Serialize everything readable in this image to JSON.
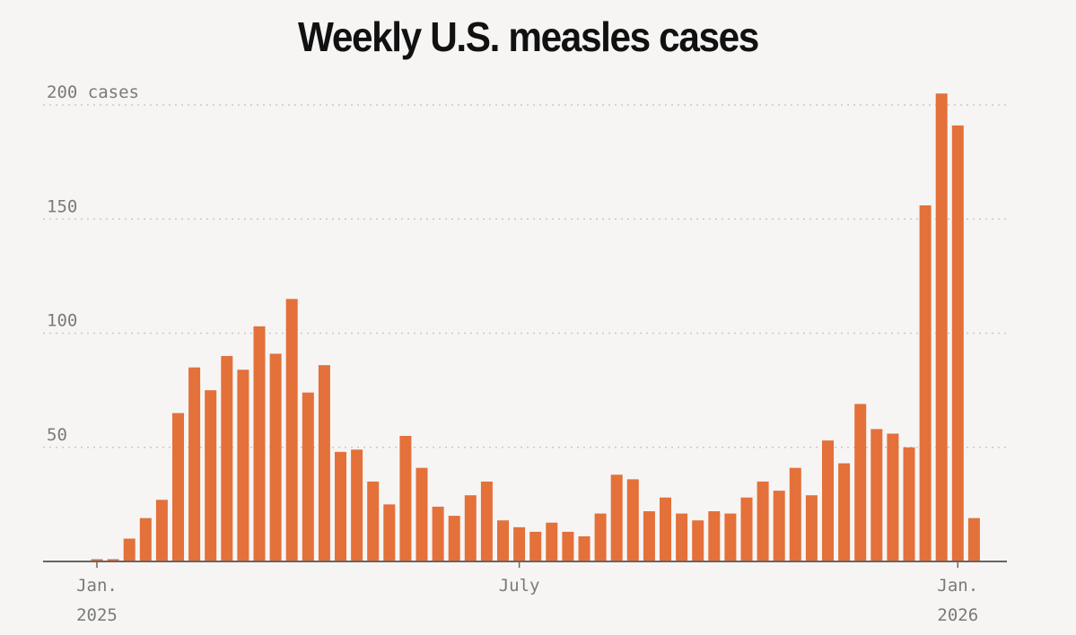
{
  "chart_data": {
    "type": "bar",
    "title": "Weekly U.S. measles cases",
    "xlabel": "",
    "ylabel": "",
    "ylim": [
      0,
      200
    ],
    "y_ticks": [
      {
        "value": 50,
        "label": "50"
      },
      {
        "value": 100,
        "label": "100"
      },
      {
        "value": 150,
        "label": "150"
      },
      {
        "value": 200,
        "label": "200 cases"
      }
    ],
    "x_ticks": [
      {
        "week_index": 0,
        "line1": "Jan.",
        "line2": "2025"
      },
      {
        "week_index": 26,
        "line1": "July",
        "line2": ""
      },
      {
        "week_index": 53,
        "line1": "Jan.",
        "line2": "2026"
      }
    ],
    "grid": "horizontal dotted",
    "bar_color": "#e4703a",
    "values": [
      1,
      1,
      10,
      19,
      27,
      65,
      85,
      75,
      90,
      84,
      103,
      91,
      115,
      74,
      86,
      48,
      49,
      35,
      25,
      55,
      41,
      24,
      20,
      29,
      35,
      18,
      15,
      13,
      17,
      13,
      11,
      21,
      38,
      36,
      22,
      28,
      21,
      18,
      22,
      21,
      28,
      35,
      31,
      41,
      29,
      53,
      43,
      69,
      58,
      56,
      50,
      156,
      205,
      191,
      19
    ]
  }
}
